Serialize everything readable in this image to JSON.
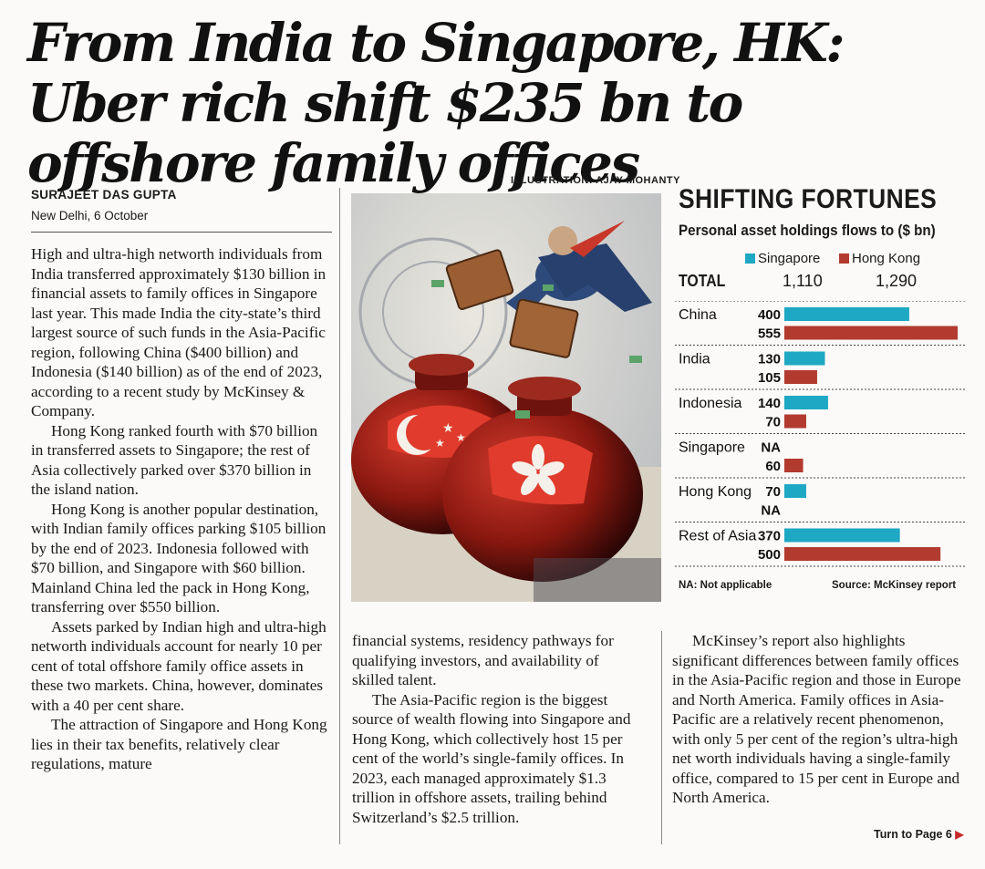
{
  "headline": "From India to Singapore, HK: Uber rich shift $235 bn to offshore family offices",
  "byline": {
    "author": "SURAJEET DAS GUPTA",
    "place_date": "New Delhi, 6 October"
  },
  "illustration_credit": "ILLUSTRATION: AJAY MOHANTY",
  "column1": [
    "High and ultra-high networth individuals from India transferred approximately $130 billion in financial assets to family offices in Singapore last year. This made India the city-state’s third largest source of such funds in the Asia-Pacific region, following China ($400 billion) and Indonesia ($140 billion) as of the end of 2023, according to a recent study by McKinsey & Company.",
    "Hong Kong ranked fourth with $70 billion in transferred assets to Singapore; the rest of Asia collectively parked over $370 billion in the island nation.",
    "Hong Kong is another popular destination, with Indian family offices parking $105 billion by the end of 2023. Indonesia followed with $70 billion, and Singapore with $60 billion. Mainland China led the pack in Hong Kong, transferring over $550 billion.",
    "Assets parked by Indian high and ultra-high networth individuals account for nearly 10 per cent of total offshore family office assets in these two markets. China, however, dominates with a 40 per cent share.",
    "The attraction of Singapore and Hong Kong lies in their tax benefits, relatively clear regulations, mature"
  ],
  "column2": [
    "financial systems, residency pathways for qualifying investors, and availability of skilled talent.",
    "The Asia-Pacific region is the biggest source of wealth flowing into Singapore and Hong Kong, which collectively host 15 per cent of the world’s single-family offices. In 2023, each managed approximately $1.3 trillion in offshore assets, trailing behind Switzerland’s $2.5 trillion."
  ],
  "column3": [
    "McKinsey’s report also highlights significant differences between family offices in the Asia-Pacific region and those in Europe and North America. Family offices in Asia-Pacific are a relatively recent phenomenon, with only 5 per cent of the region’s ultra-high net worth individuals having a single-family office, compared to 15 per cent in Europe and North America."
  ],
  "turn_to": "Turn to Page 6",
  "chart_data": {
    "type": "bar",
    "orientation": "horizontal",
    "title": "SHIFTING FORTUNES",
    "subtitle": "Personal asset holdings flows to ($ bn)",
    "total_label": "TOTAL",
    "categories": [
      "China",
      "India",
      "Indonesia",
      "Singapore",
      "Hong Kong",
      "Rest of Asia"
    ],
    "series": [
      {
        "name": "Singapore",
        "color": "#1fa8c4",
        "total": "1,110",
        "values": [
          400,
          130,
          140,
          null,
          70,
          370
        ],
        "labels": [
          "400",
          "130",
          "140",
          "NA",
          "70",
          "370"
        ]
      },
      {
        "name": "Hong Kong",
        "color": "#b23a2e",
        "total": "1,290",
        "values": [
          555,
          105,
          70,
          60,
          null,
          500
        ],
        "labels": [
          "555",
          "105",
          "70",
          "60",
          "NA",
          "500"
        ]
      }
    ],
    "xlim": [
      0,
      555
    ],
    "footnote": "NA: Not applicable",
    "source": "Source: McKinsey report",
    "grid": false
  }
}
